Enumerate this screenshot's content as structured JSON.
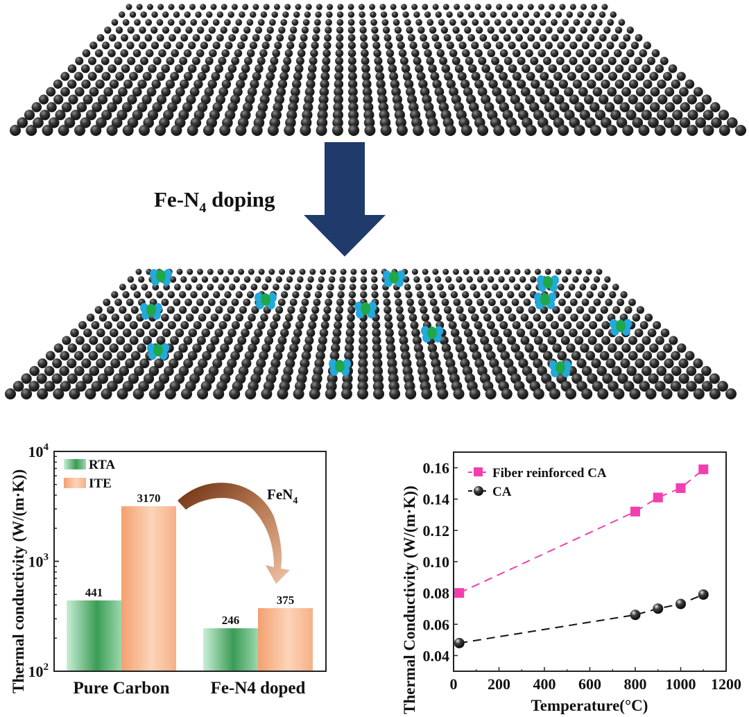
{
  "illustration": {
    "doping_label": "Fe-N",
    "doping_label_sub": "4",
    "doping_label_suffix": " doping",
    "colors": {
      "carbon": "#2a2a2a",
      "arrow": "#1f3a6b",
      "fe": "#1fa84a",
      "n": "#22a9dd"
    }
  },
  "chart_data": [
    {
      "type": "bar",
      "yscale": "log",
      "ylim": [
        100,
        10000
      ],
      "ytick_labels": [
        {
          "base": "10",
          "exp": "2",
          "value": 100
        },
        {
          "base": "10",
          "exp": "3",
          "value": 1000
        },
        {
          "base": "10",
          "exp": "4",
          "value": 10000
        }
      ],
      "ylabel": "Thermal conductivity (W/(m·K))",
      "categories": [
        "Pure Carbon",
        "Fe-N4 doped"
      ],
      "series": [
        {
          "name": "RTA",
          "values": [
            441,
            246
          ],
          "color": "#3fa85a"
        },
        {
          "name": "ITE",
          "values": [
            3170,
            375
          ],
          "color": "#f6a97a"
        }
      ],
      "data_labels": [
        [
          "441",
          "246"
        ],
        [
          "3170",
          "375"
        ]
      ],
      "legend": "top-left",
      "annotation": {
        "text": "FeN",
        "sub": "4"
      }
    },
    {
      "type": "line",
      "xlabel": "Temperature(°C)",
      "ylabel": "Thermal Conductivity (W/(m·K))",
      "xlim": [
        0,
        1200
      ],
      "ylim": [
        0.03,
        0.17
      ],
      "xticks": [
        "0",
        "200",
        "400",
        "600",
        "800",
        "1000",
        "1200"
      ],
      "yticks": [
        "0.04",
        "0.06",
        "0.08",
        "0.10",
        "0.12",
        "0.14",
        "0.16"
      ],
      "legend": "top-left",
      "series": [
        {
          "name": "Fiber reinforced CA",
          "marker": "square",
          "color": "#f23fb0",
          "x": [
            25,
            800,
            900,
            1000,
            1100
          ],
          "y": [
            0.08,
            0.132,
            0.141,
            0.147,
            0.159
          ]
        },
        {
          "name": "CA",
          "marker": "sphere",
          "color": "#111111",
          "x": [
            25,
            800,
            900,
            1000,
            1100
          ],
          "y": [
            0.048,
            0.066,
            0.07,
            0.073,
            0.079
          ]
        }
      ]
    }
  ]
}
